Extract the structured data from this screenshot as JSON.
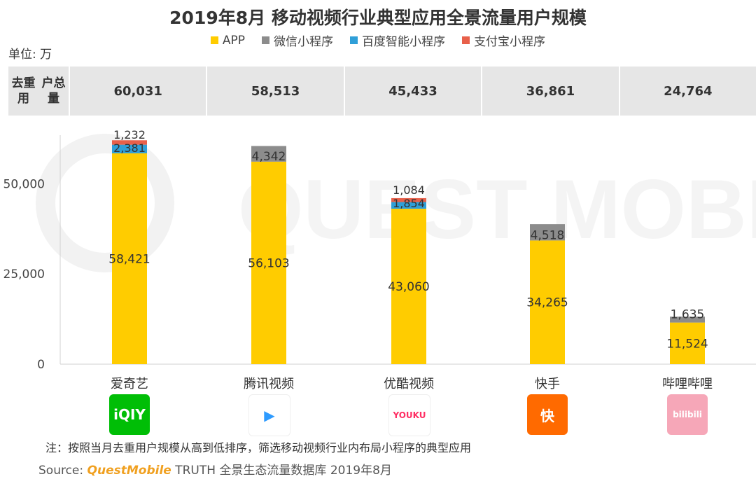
{
  "title": "2019年8月 移动视频行业典型应用全景流量用户规模",
  "unit": "单位: 万",
  "total_row": {
    "header": [
      "去重用",
      "户总量"
    ],
    "values": [
      "60,031",
      "58,513",
      "45,433",
      "36,861",
      "24,764"
    ]
  },
  "note": "注：按照当月去重用户规模从高到低排序，筛选移动视频行业内布局小程序的典型应用",
  "source": {
    "prefix": "Source:",
    "brand": "QuestMobile",
    "suffix": "TRUTH 全景生态流量数据库 2019年8月"
  },
  "watermark": "QUEST MOBILE",
  "logos": [
    {
      "icon": "iqiyi-logo-icon",
      "text": "iQIY",
      "bg": "#00be06",
      "color": "#ffffff"
    },
    {
      "icon": "tencent-video-logo-icon",
      "text": "▶",
      "bg": "#ffffff",
      "color": "#2e9bff"
    },
    {
      "icon": "youku-logo-icon",
      "text": "YOUKU",
      "bg": "#ffffff",
      "color": "#ff2e63"
    },
    {
      "icon": "kuaishou-logo-icon",
      "text": "快",
      "bg": "#ff6a00",
      "color": "#ffffff"
    },
    {
      "icon": "bilibili-logo-icon",
      "text": "bilibili",
      "bg": "#f6a7b8",
      "color": "#ffffff"
    }
  ],
  "chart_data": {
    "type": "bar",
    "stacked": true,
    "categories": [
      "爱奇艺",
      "腾讯视频",
      "优酷视频",
      "快手",
      "哔哩哔哩"
    ],
    "series": [
      {
        "name": "APP",
        "color": "#ffcc00",
        "values": [
          58421,
          56103,
          43060,
          34265,
          11524
        ],
        "labels": [
          "58,421",
          "56,103",
          "43,060",
          "34,265",
          "11,524"
        ]
      },
      {
        "name": "微信小程序",
        "color": "#8c8c8c",
        "values": [
          0,
          4342,
          0,
          4518,
          1635
        ],
        "labels": [
          "",
          "4,342",
          "",
          "4,518",
          "1,635"
        ]
      },
      {
        "name": "百度智能小程序",
        "color": "#2f9fd8",
        "values": [
          2381,
          0,
          1854,
          0,
          0
        ],
        "labels": [
          "2,381",
          "",
          "1,854",
          "",
          ""
        ]
      },
      {
        "name": "支付宝小程序",
        "color": "#e8604a",
        "values": [
          1232,
          0,
          1084,
          0,
          0
        ],
        "labels": [
          "1,232",
          "",
          "1,084",
          "",
          ""
        ]
      }
    ],
    "yticks": [
      "0",
      "25,000",
      "50,000"
    ],
    "ytick_values": [
      0,
      25000,
      50000
    ],
    "ylim": [
      0,
      65000
    ],
    "legend": "top-center",
    "grid": false
  }
}
